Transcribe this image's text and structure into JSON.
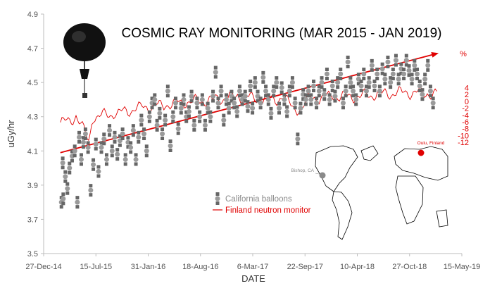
{
  "chart_data": {
    "type": "scatter",
    "title": "COSMIC RAY MONITORING  (MAR 2015 - JAN 2019)",
    "xlabel": "DATE",
    "ylabel": "uGy/hr",
    "y2label": "%",
    "x_ticks": [
      "27-Dec-14",
      "15-Jul-15",
      "31-Jan-16",
      "18-Aug-16",
      "6-Mar-17",
      "22-Sep-17",
      "10-Apr-18",
      "27-Oct-18",
      "15-May-19"
    ],
    "y_ticks": [
      "3.5",
      "3.7",
      "3.9",
      "4.1",
      "4.3",
      "4.5",
      "4.7",
      "4.9"
    ],
    "y2_ticks": [
      "4",
      "2",
      "0",
      "-2",
      "-4",
      "-6",
      "-8",
      "-10",
      "-12"
    ],
    "ylim": [
      3.5,
      4.9
    ],
    "y2lim": [
      -12,
      4
    ],
    "xlim": [
      "2014-12-27",
      "2019-05-15"
    ],
    "series": [
      {
        "name": "California balloons",
        "type": "scatter",
        "color": "#8c8c8c",
        "points": [
          [
            "2015-03-05",
            3.8
          ],
          [
            "2015-03-10",
            4.03
          ],
          [
            "2015-03-12",
            3.82
          ],
          [
            "2015-03-20",
            3.95
          ],
          [
            "2015-03-28",
            3.88
          ],
          [
            "2015-04-05",
            4.0
          ],
          [
            "2015-04-15",
            4.07
          ],
          [
            "2015-04-25",
            4.1
          ],
          [
            "2015-05-05",
            3.8
          ],
          [
            "2015-05-12",
            4.18
          ],
          [
            "2015-05-20",
            4.05
          ],
          [
            "2015-05-28",
            4.15
          ],
          [
            "2015-06-05",
            4.2
          ],
          [
            "2015-06-15",
            4.12
          ],
          [
            "2015-06-25",
            3.87
          ],
          [
            "2015-07-05",
            4.02
          ],
          [
            "2015-07-15",
            4.14
          ],
          [
            "2015-07-25",
            3.98
          ],
          [
            "2015-08-05",
            4.12
          ],
          [
            "2015-08-15",
            4.17
          ],
          [
            "2015-08-25",
            4.05
          ],
          [
            "2015-09-05",
            4.22
          ],
          [
            "2015-09-15",
            4.1
          ],
          [
            "2015-09-25",
            4.18
          ],
          [
            "2015-10-05",
            4.08
          ],
          [
            "2015-10-15",
            4.16
          ],
          [
            "2015-10-25",
            4.2
          ],
          [
            "2015-11-05",
            4.05
          ],
          [
            "2015-11-15",
            4.15
          ],
          [
            "2015-11-25",
            4.12
          ],
          [
            "2015-12-05",
            4.22
          ],
          [
            "2015-12-15",
            4.05
          ],
          [
            "2015-12-25",
            4.18
          ],
          [
            "2016-01-05",
            4.28
          ],
          [
            "2016-01-15",
            4.2
          ],
          [
            "2016-01-25",
            4.1
          ],
          [
            "2016-02-05",
            4.3
          ],
          [
            "2016-02-15",
            4.38
          ],
          [
            "2016-02-25",
            4.4
          ],
          [
            "2016-03-05",
            4.25
          ],
          [
            "2016-03-15",
            4.32
          ],
          [
            "2016-03-25",
            4.2
          ],
          [
            "2016-04-05",
            4.28
          ],
          [
            "2016-04-15",
            4.45
          ],
          [
            "2016-04-25",
            4.13
          ],
          [
            "2016-05-05",
            4.3
          ],
          [
            "2016-05-15",
            4.38
          ],
          [
            "2016-05-25",
            4.23
          ],
          [
            "2016-06-05",
            4.35
          ],
          [
            "2016-06-15",
            4.4
          ],
          [
            "2016-06-25",
            4.3
          ],
          [
            "2016-07-05",
            4.33
          ],
          [
            "2016-07-15",
            4.42
          ],
          [
            "2016-07-25",
            4.25
          ],
          [
            "2016-08-05",
            4.38
          ],
          [
            "2016-08-15",
            4.3
          ],
          [
            "2016-08-25",
            4.4
          ],
          [
            "2016-09-05",
            4.25
          ],
          [
            "2016-09-15",
            4.35
          ],
          [
            "2016-09-25",
            4.3
          ],
          [
            "2016-10-05",
            4.42
          ],
          [
            "2016-10-15",
            4.56
          ],
          [
            "2016-10-25",
            4.38
          ],
          [
            "2016-11-05",
            4.45
          ],
          [
            "2016-11-15",
            4.28
          ],
          [
            "2016-11-25",
            4.4
          ],
          [
            "2016-12-05",
            4.35
          ],
          [
            "2016-12-15",
            4.42
          ],
          [
            "2016-12-25",
            4.38
          ],
          [
            "2017-01-05",
            4.33
          ],
          [
            "2017-01-15",
            4.45
          ],
          [
            "2017-01-25",
            4.4
          ],
          [
            "2017-02-05",
            4.42
          ],
          [
            "2017-02-15",
            4.36
          ],
          [
            "2017-02-25",
            4.48
          ],
          [
            "2017-03-05",
            4.35
          ],
          [
            "2017-03-15",
            4.5
          ],
          [
            "2017-03-25",
            4.42
          ],
          [
            "2017-04-05",
            4.38
          ],
          [
            "2017-04-15",
            4.53
          ],
          [
            "2017-04-25",
            4.45
          ],
          [
            "2017-05-05",
            4.4
          ],
          [
            "2017-05-15",
            4.32
          ],
          [
            "2017-05-25",
            4.45
          ],
          [
            "2017-06-05",
            4.5
          ],
          [
            "2017-06-15",
            4.35
          ],
          [
            "2017-06-25",
            4.47
          ],
          [
            "2017-07-05",
            4.4
          ],
          [
            "2017-07-15",
            4.33
          ],
          [
            "2017-07-25",
            4.45
          ],
          [
            "2017-08-05",
            4.5
          ],
          [
            "2017-08-15",
            4.38
          ],
          [
            "2017-08-25",
            4.17
          ],
          [
            "2017-09-05",
            4.35
          ],
          [
            "2017-09-15",
            4.43
          ],
          [
            "2017-09-25",
            4.4
          ],
          [
            "2017-10-05",
            4.45
          ],
          [
            "2017-10-15",
            4.4
          ],
          [
            "2017-10-25",
            4.48
          ],
          [
            "2017-11-05",
            4.38
          ],
          [
            "2017-11-15",
            4.45
          ],
          [
            "2017-11-25",
            4.5
          ],
          [
            "2017-12-05",
            4.43
          ],
          [
            "2017-12-15",
            4.55
          ],
          [
            "2017-12-25",
            4.4
          ],
          [
            "2018-01-05",
            4.48
          ],
          [
            "2018-01-15",
            4.42
          ],
          [
            "2018-01-25",
            4.5
          ],
          [
            "2018-02-05",
            4.55
          ],
          [
            "2018-02-15",
            4.38
          ],
          [
            "2018-02-25",
            4.45
          ],
          [
            "2018-03-05",
            4.62
          ],
          [
            "2018-03-15",
            4.5
          ],
          [
            "2018-03-25",
            4.45
          ],
          [
            "2018-04-05",
            4.4
          ],
          [
            "2018-04-15",
            4.52
          ],
          [
            "2018-04-25",
            4.48
          ],
          [
            "2018-05-05",
            4.55
          ],
          [
            "2018-05-15",
            4.45
          ],
          [
            "2018-05-25",
            4.5
          ],
          [
            "2018-06-05",
            4.6
          ],
          [
            "2018-06-15",
            4.48
          ],
          [
            "2018-06-25",
            4.55
          ],
          [
            "2018-07-05",
            4.45
          ],
          [
            "2018-07-15",
            4.58
          ],
          [
            "2018-07-25",
            4.52
          ],
          [
            "2018-08-05",
            4.62
          ],
          [
            "2018-08-15",
            4.5
          ],
          [
            "2018-08-25",
            4.55
          ],
          [
            "2018-09-05",
            4.63
          ],
          [
            "2018-09-15",
            4.52
          ],
          [
            "2018-09-25",
            4.58
          ],
          [
            "2018-10-05",
            4.55
          ],
          [
            "2018-10-15",
            4.63
          ],
          [
            "2018-10-25",
            4.57
          ],
          [
            "2018-11-05",
            4.52
          ],
          [
            "2018-11-15",
            4.6
          ],
          [
            "2018-11-25",
            4.55
          ],
          [
            "2018-12-05",
            4.48
          ],
          [
            "2018-12-15",
            4.43
          ],
          [
            "2018-12-25",
            4.52
          ],
          [
            "2019-01-05",
            4.6
          ],
          [
            "2019-01-15",
            4.45
          ],
          [
            "2019-01-25",
            4.38
          ]
        ]
      },
      {
        "name": "Finland neutron monitor",
        "type": "line",
        "color": "#e00000",
        "y_axis": "right",
        "x": [
          "2015-03-01",
          "2015-05-01",
          "2015-06-20",
          "2015-07-01",
          "2015-10-01",
          "2016-01-01",
          "2016-04-01",
          "2016-07-01",
          "2016-10-01",
          "2017-01-01",
          "2017-04-01",
          "2017-07-01",
          "2017-09-10",
          "2017-09-20",
          "2017-10-01",
          "2018-01-01",
          "2018-04-01",
          "2018-07-01",
          "2018-10-01",
          "2019-01-01",
          "2019-02-10"
        ],
        "values": [
          -6.5,
          -4.5,
          -11.5,
          -4.5,
          -3.5,
          -2.0,
          -1.0,
          0.0,
          0.2,
          1.5,
          0.8,
          0.7,
          -3.2,
          -1.0,
          0.5,
          1.5,
          1.5,
          2.0,
          2.5,
          2.5,
          2.0
        ]
      }
    ],
    "trend": {
      "from": [
        "2015-03-01",
        4.09
      ],
      "to": [
        "2019-02-10",
        4.67
      ],
      "color": "#e00000"
    },
    "legend": {
      "position": "bottom-center",
      "entries": [
        "California balloons",
        "Finland neutron monitor"
      ]
    },
    "grid": false
  },
  "inset_map": {
    "labels": {
      "bishop": "Bishop, CA",
      "oulu": "Oulu, Finland"
    }
  }
}
